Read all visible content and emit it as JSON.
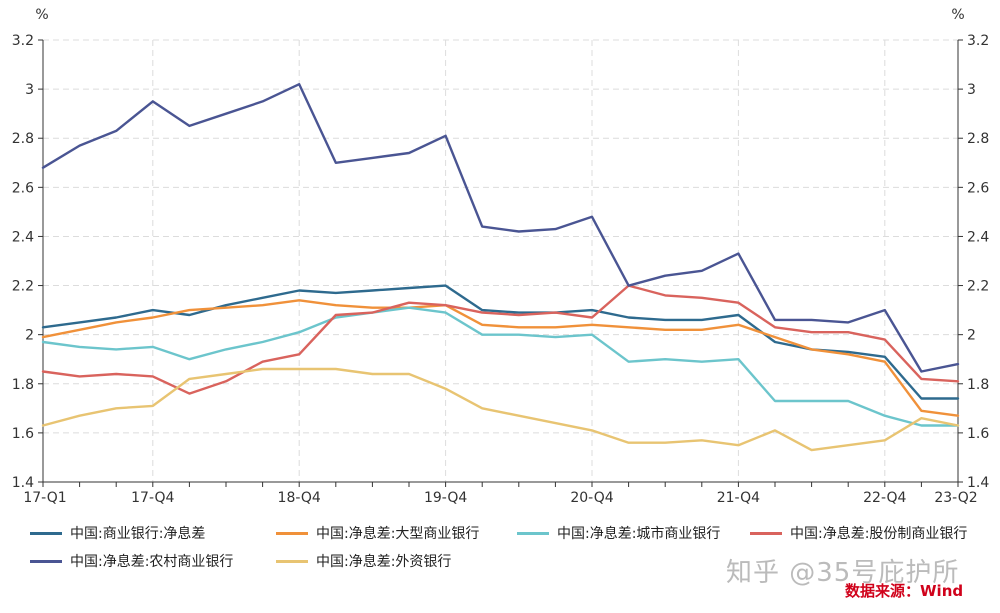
{
  "chart_data": {
    "type": "line",
    "y_unit": "%",
    "ylim": [
      1.4,
      3.2
    ],
    "yticks": [
      "1.4",
      "1.6",
      "1.8",
      "2",
      "2.2",
      "2.4",
      "2.6",
      "2.8",
      "3",
      "3.2"
    ],
    "x": [
      "17-Q1",
      "17-Q2",
      "17-Q3",
      "17-Q4",
      "18-Q1",
      "18-Q2",
      "18-Q3",
      "18-Q4",
      "19-Q1",
      "19-Q2",
      "19-Q3",
      "19-Q4",
      "20-Q1",
      "20-Q2",
      "20-Q3",
      "20-Q4",
      "21-Q1",
      "21-Q2",
      "21-Q3",
      "21-Q4",
      "22-Q1",
      "22-Q2",
      "22-Q3",
      "22-Q4",
      "23-Q1",
      "23-Q2"
    ],
    "xtick_labels": [
      "17-Q1",
      "17-Q4",
      "18-Q4",
      "19-Q4",
      "20-Q4",
      "21-Q4",
      "22-Q4",
      "23-Q2"
    ],
    "grid": true,
    "legend_position": "bottom",
    "series": [
      {
        "name": "中国:商业银行:净息差",
        "color": "#2e6a8e",
        "values": [
          2.03,
          2.05,
          2.07,
          2.1,
          2.08,
          2.12,
          2.15,
          2.18,
          2.17,
          2.18,
          2.19,
          2.2,
          2.1,
          2.09,
          2.09,
          2.1,
          2.07,
          2.06,
          2.06,
          2.08,
          1.97,
          1.94,
          1.93,
          1.91,
          1.74,
          1.74
        ]
      },
      {
        "name": "中国:净息差:大型商业银行",
        "color": "#f0913a",
        "values": [
          1.99,
          2.02,
          2.05,
          2.07,
          2.1,
          2.11,
          2.12,
          2.14,
          2.12,
          2.11,
          2.11,
          2.12,
          2.04,
          2.03,
          2.03,
          2.04,
          2.03,
          2.02,
          2.02,
          2.04,
          1.99,
          1.94,
          1.92,
          1.89,
          1.69,
          1.67
        ]
      },
      {
        "name": "中国:净息差:城市商业银行",
        "color": "#6cc5cc",
        "values": [
          1.97,
          1.95,
          1.94,
          1.95,
          1.9,
          1.94,
          1.97,
          2.01,
          2.07,
          2.09,
          2.11,
          2.09,
          2.0,
          2.0,
          1.99,
          2.0,
          1.89,
          1.9,
          1.89,
          1.9,
          1.73,
          1.73,
          1.73,
          1.67,
          1.63,
          1.63
        ]
      },
      {
        "name": "中国:净息差:股份制商业银行",
        "color": "#d9635d",
        "values": [
          1.85,
          1.83,
          1.84,
          1.83,
          1.76,
          1.81,
          1.89,
          1.92,
          2.08,
          2.09,
          2.13,
          2.12,
          2.09,
          2.08,
          2.09,
          2.07,
          2.2,
          2.16,
          2.15,
          2.13,
          2.03,
          2.01,
          2.01,
          1.98,
          1.82,
          1.81
        ]
      },
      {
        "name": "中国:净息差:农村商业银行",
        "color": "#4a5593",
        "values": [
          2.68,
          2.77,
          2.83,
          2.95,
          2.85,
          2.9,
          2.95,
          3.02,
          2.7,
          2.72,
          2.74,
          2.81,
          2.44,
          2.42,
          2.43,
          2.48,
          2.2,
          2.24,
          2.26,
          2.33,
          2.06,
          2.06,
          2.05,
          2.1,
          1.85,
          1.88
        ]
      },
      {
        "name": "中国:净息差:外资银行",
        "color": "#e8c472",
        "values": [
          1.63,
          1.67,
          1.7,
          1.71,
          1.82,
          1.84,
          1.86,
          1.86,
          1.86,
          1.84,
          1.84,
          1.78,
          1.7,
          1.67,
          1.64,
          1.61,
          1.56,
          1.56,
          1.57,
          1.55,
          1.61,
          1.53,
          1.55,
          1.57,
          1.66,
          1.63
        ]
      }
    ]
  },
  "watermark": "知乎 @35号庇护所",
  "source_text": "数据来源：Wind"
}
